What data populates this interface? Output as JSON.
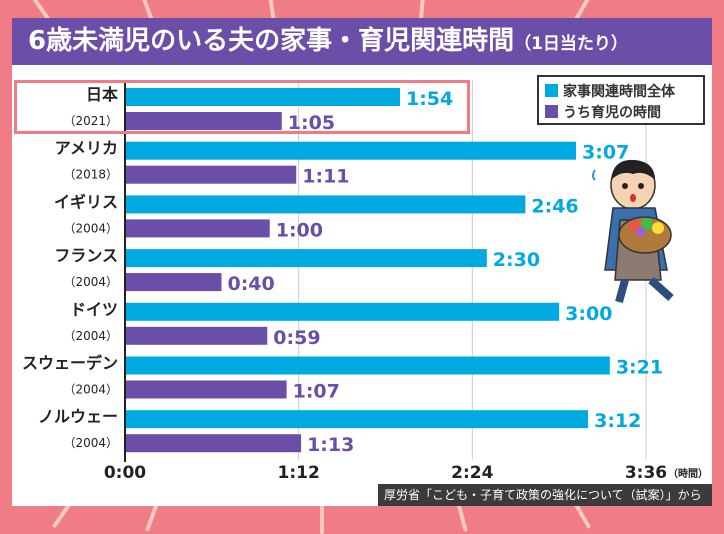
{
  "title": {
    "main": "6歳未満児のいる夫の家事・育児関連時間",
    "sub": "（1日当たり）"
  },
  "source": "厚労省「こども・子育て政策の強化について（試案）」から",
  "colors": {
    "total": "#00a9e0",
    "childcare": "#6a4ea8",
    "title_bg": "#6a4ea8",
    "background": "#f07c85",
    "highlight": "#ee7b86"
  },
  "chart_data": {
    "type": "bar",
    "orientation": "horizontal",
    "categories": [
      {
        "name": "日本",
        "year": "（2021）"
      },
      {
        "name": "アメリカ",
        "year": "（2018）"
      },
      {
        "name": "イギリス",
        "year": "（2004）"
      },
      {
        "name": "フランス",
        "year": "（2004）"
      },
      {
        "name": "ドイツ",
        "year": "（2004）"
      },
      {
        "name": "スウェーデン",
        "year": "（2004）"
      },
      {
        "name": "ノルウェー",
        "year": "（2004）"
      }
    ],
    "series": [
      {
        "name": "家事関連時間全体",
        "color": "#00a9e0",
        "values": [
          114,
          187,
          166,
          150,
          180,
          201,
          192
        ],
        "labels": [
          "1:54",
          "3:07",
          "2:46",
          "2:30",
          "3:00",
          "3:21",
          "3:12"
        ]
      },
      {
        "name": "うち育児の時間",
        "color": "#6a4ea8",
        "values": [
          65,
          71,
          60,
          40,
          59,
          67,
          73
        ],
        "labels": [
          "1:05",
          "1:11",
          "1:00",
          "0:40",
          "0:59",
          "1:07",
          "1:13"
        ]
      }
    ],
    "x_ticks": [
      {
        "value": 0,
        "label": "0:00"
      },
      {
        "value": 72,
        "label": "1:12"
      },
      {
        "value": 144,
        "label": "2:24"
      },
      {
        "value": 216,
        "label": "3:36"
      }
    ],
    "x_unit": "（時間）",
    "value_unit": "minutes",
    "grid": true,
    "legend": "top-right",
    "highlighted_category": "日本"
  }
}
